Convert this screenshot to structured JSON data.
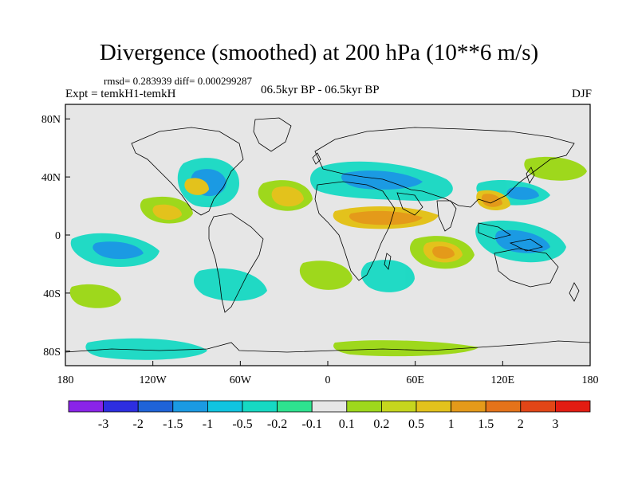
{
  "title": "Divergence (smoothed) at 200 hPa (10**6 m/s)",
  "stats": "rmsd= 0.283939 diff= 0.000299287",
  "experiment": "Expt = temkH1-temkH",
  "period": "06.5kyr BP - 06.5kyr BP",
  "season": "DJF",
  "map": {
    "x_ticks": [
      "180",
      "120W",
      "60W",
      "0",
      "60E",
      "120E",
      "180"
    ],
    "y_ticks": [
      "80N",
      "40N",
      "0",
      "40S",
      "80S"
    ],
    "background_color": "#e6e6e6"
  },
  "colorbar": {
    "colors": [
      "#8a24e8",
      "#2d2ee0",
      "#1f63d8",
      "#1b9ae3",
      "#10c4e0",
      "#16d9c3",
      "#2ee38f",
      "#e6e6e6",
      "#9ed81c",
      "#c6d61e",
      "#e3c21c",
      "#e49a1a",
      "#e4731a",
      "#e24617",
      "#e31c12"
    ],
    "labels": [
      "-3",
      "-2",
      "-1.5",
      "-1",
      "-0.5",
      "-0.2",
      "-0.1",
      "0.1",
      "0.2",
      "0.5",
      "1",
      "1.5",
      "2",
      "3"
    ]
  }
}
